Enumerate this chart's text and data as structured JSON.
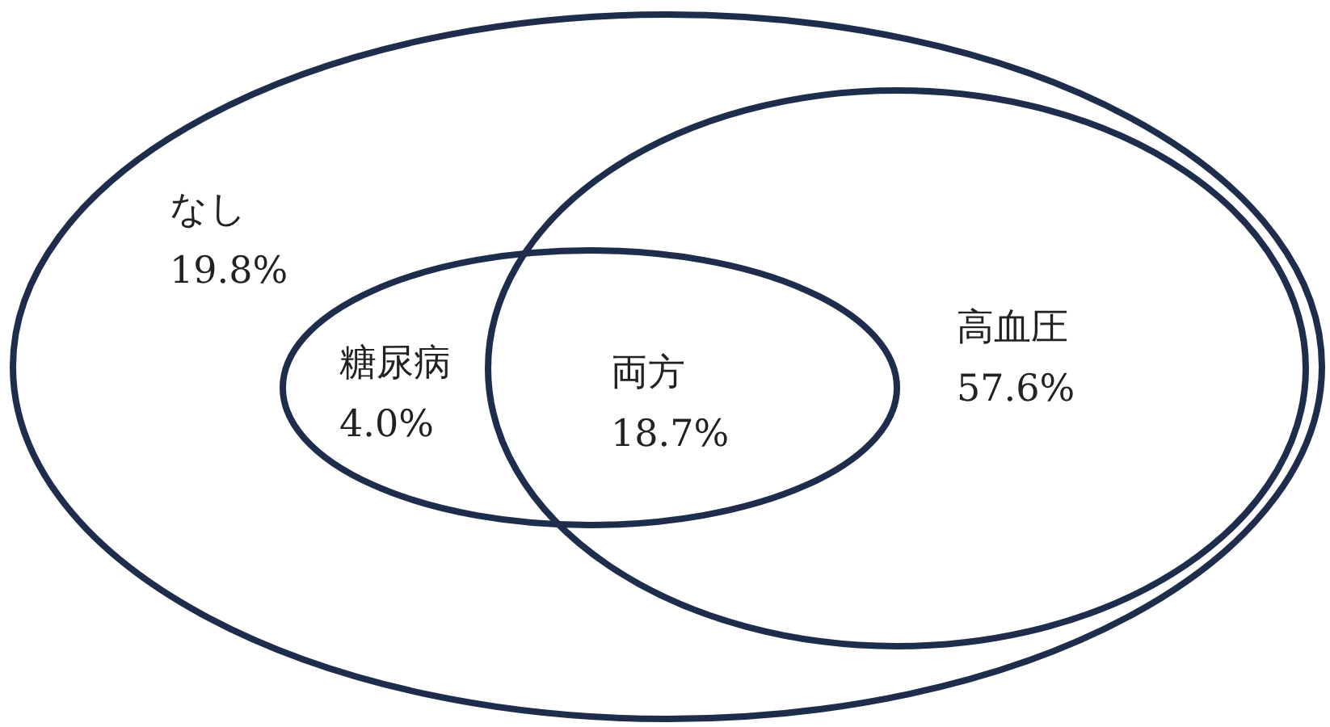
{
  "chart_data": {
    "type": "other",
    "categories": [
      "なし",
      "糖尿病",
      "両方",
      "高血圧"
    ],
    "values": [
      19.8,
      4.0,
      18.7,
      57.6
    ],
    "value_labels": [
      "19.8%",
      "4.0%",
      "18.7%",
      "57.6%"
    ],
    "color": "#1f2d4d"
  }
}
